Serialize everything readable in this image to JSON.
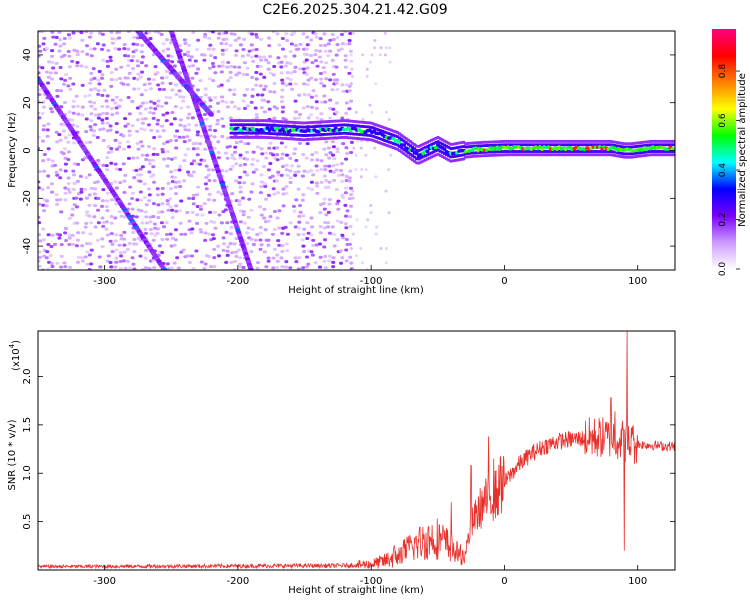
{
  "title": "C2E6.2025.304.21.42.G09",
  "chart_data": [
    {
      "type": "heatmap",
      "name": "spectrogram",
      "xlabel": "Height of straight line (km)",
      "ylabel": "Frequency (Hz)",
      "xlim": [
        -350,
        128
      ],
      "ylim": [
        -50,
        50
      ],
      "xticks": [
        -300,
        -200,
        -100,
        0,
        100
      ],
      "yticks": [
        -40,
        -20,
        0,
        20,
        40
      ],
      "xtick_labels": [
        "-300",
        "-200",
        "-100",
        "0",
        "100"
      ],
      "ytick_labels": [
        "-40",
        "-20",
        "0",
        "20",
        "40"
      ],
      "colorbar": {
        "label": "Normalized spectral amplitude",
        "range": [
          0,
          0.97
        ],
        "ticks": [
          0.0,
          0.2,
          0.4,
          0.6,
          0.8
        ],
        "tick_labels": [
          "0.0",
          "0.2",
          "0.4",
          "0.6",
          "0.8"
        ],
        "colors": [
          "#ffffff",
          "#cc99ff",
          "#7a00ff",
          "#0000ff",
          "#00ffff",
          "#00ff00",
          "#ffff00",
          "#ff8000",
          "#ff0000",
          "#ff0080"
        ]
      },
      "features": {
        "noise_region_x": [
          -350,
          -115
        ],
        "sparse_noise_region_x": [
          -115,
          -85
        ],
        "diagonal_tracks": [
          {
            "x": [
              -250,
              -190
            ],
            "y": [
              50,
              -50
            ]
          },
          {
            "x": [
              -350,
              -255
            ],
            "y": [
              30,
              -50
            ]
          },
          {
            "x": [
              -275,
              -220
            ],
            "y": [
              50,
              15
            ]
          }
        ],
        "signal_ridge": {
          "x": [
            -205,
            -180,
            -150,
            -120,
            -100,
            -80,
            -65,
            -50,
            -40,
            -30,
            -20,
            0,
            20,
            50,
            80,
            90,
            95,
            110,
            128
          ],
          "freq": [
            9,
            9,
            8,
            9,
            8,
            4,
            -2,
            2,
            -1,
            0,
            0.5,
            1,
            1,
            1,
            1,
            0,
            0,
            1,
            1
          ]
        }
      }
    },
    {
      "type": "line",
      "name": "snr",
      "xlabel": "Height of straight line (km)",
      "ylabel": "SNR (10 * v/v)",
      "multiplier_label": "(x10",
      "multiplier_exp": "4",
      "xlim": [
        -350,
        128
      ],
      "ylim": [
        0,
        24700
      ],
      "xticks": [
        -300,
        -200,
        -100,
        0,
        100
      ],
      "yticks": [
        5000,
        10000,
        15000,
        20000
      ],
      "xtick_labels": [
        "-300",
        "-200",
        "-100",
        "0",
        "100"
      ],
      "ytick_labels": [
        "0.5",
        "1.0",
        "1.5",
        "2.0"
      ],
      "color": "#e8312c",
      "envelope": {
        "x": [
          -350,
          -120,
          -100,
          -90,
          -80,
          -70,
          -60,
          -50,
          -45,
          -40,
          -35,
          -30,
          -25,
          -20,
          -15,
          -10,
          -5,
          0,
          10,
          20,
          30,
          40,
          50,
          60,
          70,
          80,
          85,
          88,
          90,
          92,
          95,
          100,
          110,
          120,
          128
        ],
        "y": [
          350,
          450,
          600,
          900,
          1600,
          2500,
          3200,
          3500,
          3000,
          2500,
          1800,
          1500,
          4500,
          6000,
          7000,
          7500,
          8000,
          9000,
          10800,
          12000,
          12800,
          13300,
          13500,
          13600,
          13700,
          13700,
          13600,
          13500,
          13300,
          13200,
          13100,
          13000,
          12900,
          12800,
          12800
        ]
      },
      "spikes": [
        {
          "x": -40,
          "y": 7000
        },
        {
          "x": -25,
          "y": 10800
        },
        {
          "x": -20,
          "y": 5000
        },
        {
          "x": -12,
          "y": 13800
        },
        {
          "x": -8,
          "y": 11500
        },
        {
          "x": -3,
          "y": 11700
        },
        {
          "x": 80,
          "y": 17800
        },
        {
          "x": 83,
          "y": 16400
        },
        {
          "x": 90,
          "y": 2000
        },
        {
          "x": 92,
          "y": 24700
        },
        {
          "x": 96,
          "y": 14800
        }
      ]
    }
  ]
}
